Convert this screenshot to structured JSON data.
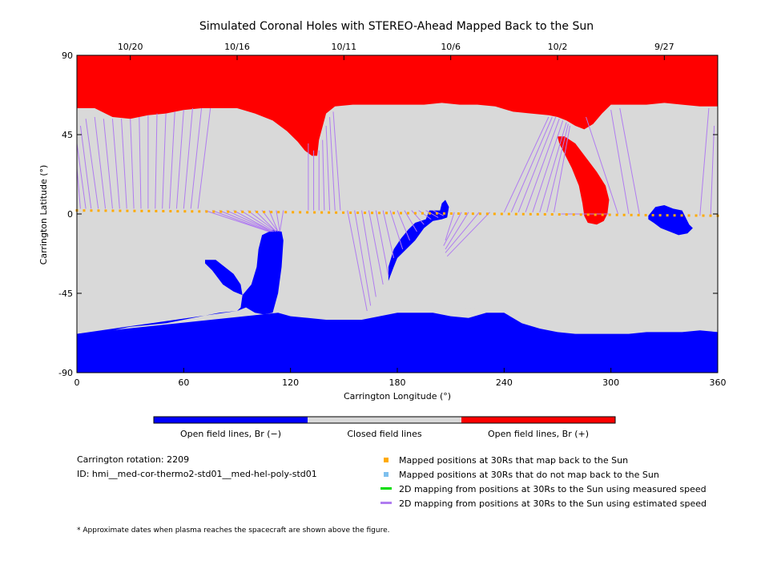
{
  "chart_data": {
    "type": "heatmap",
    "title": "Simulated Coronal Holes with STEREO-Ahead Mapped Back to the Sun",
    "xlabel": "Carrington Longitude (°)",
    "ylabel": "Carrington Latitude (°)",
    "xlim": [
      0,
      360
    ],
    "ylim": [
      -90,
      90
    ],
    "x_ticks": [
      "0",
      "60",
      "120",
      "180",
      "240",
      "300",
      "360"
    ],
    "y_ticks": [
      "90",
      "45",
      "0",
      "-45",
      "-90"
    ],
    "top_dates": [
      {
        "label": "10/20",
        "lon": 30
      },
      {
        "label": "10/16",
        "lon": 90
      },
      {
        "label": "10/11",
        "lon": 150
      },
      {
        "label": "10/6",
        "lon": 210
      },
      {
        "label": "10/2",
        "lon": 270
      },
      {
        "label": "9/27",
        "lon": 330
      }
    ],
    "colorbar": [
      {
        "label": "Open field lines, Br (−)",
        "color": "#0000ff"
      },
      {
        "label": "Closed field lines",
        "color": "#d9d9d9"
      },
      {
        "label": "Open field lines, Br (+)",
        "color": "#ff0000"
      }
    ],
    "north_hole_boundary": [
      [
        0,
        60
      ],
      [
        10,
        60
      ],
      [
        20,
        55
      ],
      [
        30,
        54
      ],
      [
        40,
        56
      ],
      [
        50,
        57
      ],
      [
        60,
        59
      ],
      [
        70,
        60
      ],
      [
        80,
        60
      ],
      [
        90,
        60
      ],
      [
        100,
        57
      ],
      [
        110,
        53
      ],
      [
        118,
        47
      ],
      [
        124,
        41
      ],
      [
        128,
        36
      ],
      [
        132,
        33
      ],
      [
        135,
        33
      ],
      [
        136,
        42
      ],
      [
        140,
        57
      ],
      [
        145,
        61
      ],
      [
        155,
        62
      ],
      [
        165,
        62
      ],
      [
        175,
        62
      ],
      [
        185,
        62
      ],
      [
        195,
        62
      ],
      [
        205,
        63
      ],
      [
        215,
        62
      ],
      [
        225,
        62
      ],
      [
        235,
        61
      ],
      [
        245,
        58
      ],
      [
        255,
        57
      ],
      [
        265,
        56
      ],
      [
        270,
        55
      ],
      [
        275,
        53
      ],
      [
        280,
        50
      ],
      [
        285,
        48
      ],
      [
        290,
        51
      ],
      [
        295,
        57
      ],
      [
        300,
        62
      ],
      [
        310,
        62
      ],
      [
        320,
        62
      ],
      [
        330,
        63
      ],
      [
        340,
        62
      ],
      [
        350,
        61
      ],
      [
        360,
        61
      ]
    ],
    "south_hole_boundary": [
      [
        0,
        -68
      ],
      [
        10,
        -68
      ],
      [
        20,
        -66
      ],
      [
        30,
        -64
      ],
      [
        40,
        -63
      ],
      [
        50,
        -62
      ],
      [
        60,
        -60
      ],
      [
        70,
        -58
      ],
      [
        80,
        -56
      ],
      [
        90,
        -55
      ],
      [
        95,
        -53
      ],
      [
        100,
        -56
      ],
      [
        105,
        -57
      ],
      [
        110,
        -56
      ],
      [
        113,
        -45
      ],
      [
        115,
        -30
      ],
      [
        116,
        -15
      ],
      [
        115,
        -10
      ],
      [
        110,
        -9
      ],
      [
        104,
        -12
      ],
      [
        102,
        -20
      ],
      [
        101,
        -30
      ],
      [
        98,
        -40
      ],
      [
        93,
        -46
      ],
      [
        92,
        -53
      ],
      [
        90,
        -55
      ]
    ],
    "south_hole_main": [
      [
        113,
        -56
      ],
      [
        120,
        -58
      ],
      [
        130,
        -59
      ],
      [
        140,
        -60
      ],
      [
        150,
        -60
      ],
      [
        160,
        -60
      ],
      [
        170,
        -58
      ],
      [
        180,
        -56
      ],
      [
        190,
        -56
      ],
      [
        200,
        -56
      ],
      [
        210,
        -58
      ],
      [
        220,
        -59
      ],
      [
        230,
        -56
      ],
      [
        240,
        -56
      ],
      [
        250,
        -62
      ],
      [
        260,
        -65
      ],
      [
        270,
        -67
      ],
      [
        280,
        -68
      ],
      [
        290,
        -68
      ],
      [
        300,
        -68
      ],
      [
        310,
        -68
      ],
      [
        320,
        -67
      ],
      [
        330,
        -67
      ],
      [
        340,
        -67
      ],
      [
        350,
        -66
      ],
      [
        360,
        -67
      ],
      [
        360,
        -90
      ],
      [
        0,
        -90
      ],
      [
        0,
        -68
      ]
    ],
    "south_extension": [
      [
        175,
        -38
      ],
      [
        178,
        -30
      ],
      [
        180,
        -25
      ],
      [
        185,
        -20
      ],
      [
        190,
        -15
      ],
      [
        195,
        -8
      ],
      [
        200,
        -4
      ],
      [
        205,
        -3
      ],
      [
        208,
        -2
      ],
      [
        209,
        4
      ],
      [
        207,
        8
      ],
      [
        205,
        6
      ],
      [
        204,
        2
      ],
      [
        198,
        2
      ],
      [
        196,
        -3
      ],
      [
        190,
        -5
      ],
      [
        186,
        -9
      ],
      [
        182,
        -14
      ],
      [
        178,
        -20
      ],
      [
        175,
        -30
      ]
    ],
    "south_island_1": [
      [
        72,
        -26
      ],
      [
        78,
        -26
      ],
      [
        83,
        -30
      ],
      [
        88,
        -34
      ],
      [
        92,
        -40
      ],
      [
        93,
        -46
      ],
      [
        88,
        -44
      ],
      [
        82,
        -40
      ],
      [
        76,
        -32
      ],
      [
        72,
        -28
      ]
    ],
    "south_island_2": [
      [
        321,
        -1
      ],
      [
        325,
        4
      ],
      [
        330,
        5
      ],
      [
        335,
        3
      ],
      [
        340,
        2
      ],
      [
        344,
        -6
      ],
      [
        346,
        -8
      ],
      [
        343,
        -11
      ],
      [
        338,
        -12
      ],
      [
        333,
        -10
      ],
      [
        328,
        -8
      ],
      [
        324,
        -5
      ],
      [
        321,
        -3
      ]
    ],
    "closed_hole_1": [
      [
        172,
        -50
      ],
      [
        176,
        -52
      ],
      [
        182,
        -52
      ],
      [
        186,
        -49
      ],
      [
        185,
        -42
      ],
      [
        180,
        -39
      ],
      [
        174,
        -40
      ],
      [
        171,
        -45
      ]
    ],
    "closed_hole_2": [
      [
        192,
        -44
      ],
      [
        200,
        -38
      ],
      [
        210,
        -37
      ],
      [
        220,
        -38
      ],
      [
        228,
        -42
      ],
      [
        230,
        -48
      ],
      [
        225,
        -53
      ],
      [
        212,
        -55
      ],
      [
        198,
        -53
      ],
      [
        192,
        -49
      ]
    ],
    "north_island": [
      [
        270,
        44
      ],
      [
        274,
        44
      ],
      [
        280,
        40
      ],
      [
        286,
        32
      ],
      [
        292,
        24
      ],
      [
        297,
        16
      ],
      [
        299,
        8
      ],
      [
        298,
        0
      ],
      [
        296,
        -4
      ],
      [
        292,
        -6
      ],
      [
        287,
        -5
      ],
      [
        285,
        -1
      ],
      [
        284,
        6
      ],
      [
        282,
        16
      ],
      [
        278,
        26
      ],
      [
        274,
        34
      ],
      [
        271,
        40
      ]
    ],
    "mapped_track": {
      "lon_start": 0,
      "lat_start": 2,
      "lon_end": 360,
      "lat_end": -1,
      "count": 90
    },
    "field_line_links": [
      [
        [
          2,
          3
        ],
        [
          0,
          26
        ]
      ],
      [
        [
          5,
          3
        ],
        [
          0,
          40
        ]
      ],
      [
        [
          8,
          3
        ],
        [
          2,
          50
        ]
      ],
      [
        [
          12,
          3
        ],
        [
          5,
          54
        ]
      ],
      [
        [
          16,
          3
        ],
        [
          10,
          55
        ]
      ],
      [
        [
          20,
          3
        ],
        [
          15,
          54
        ]
      ],
      [
        [
          24,
          3
        ],
        [
          20,
          54
        ]
      ],
      [
        [
          28,
          3
        ],
        [
          25,
          54
        ]
      ],
      [
        [
          32,
          3
        ],
        [
          30,
          54
        ]
      ],
      [
        [
          36,
          3
        ],
        [
          35,
          55
        ]
      ],
      [
        [
          40,
          3
        ],
        [
          40,
          56
        ]
      ],
      [
        [
          44,
          3
        ],
        [
          45,
          57
        ]
      ],
      [
        [
          48,
          3
        ],
        [
          50,
          57
        ]
      ],
      [
        [
          52,
          3
        ],
        [
          55,
          58
        ]
      ],
      [
        [
          56,
          3
        ],
        [
          60,
          59
        ]
      ],
      [
        [
          60,
          3
        ],
        [
          65,
          60
        ]
      ],
      [
        [
          64,
          3
        ],
        [
          70,
          60
        ]
      ],
      [
        [
          68,
          3
        ],
        [
          75,
          60
        ]
      ],
      [
        [
          72,
          2
        ],
        [
          108,
          -10
        ]
      ],
      [
        [
          76,
          2
        ],
        [
          108,
          -10
        ]
      ],
      [
        [
          80,
          2
        ],
        [
          109,
          -10
        ]
      ],
      [
        [
          84,
          2
        ],
        [
          110,
          -10
        ]
      ],
      [
        [
          88,
          2
        ],
        [
          110,
          -10
        ]
      ],
      [
        [
          92,
          2
        ],
        [
          111,
          -10
        ]
      ],
      [
        [
          96,
          2
        ],
        [
          112,
          -10
        ]
      ],
      [
        [
          100,
          2
        ],
        [
          112,
          -10
        ]
      ],
      [
        [
          104,
          2
        ],
        [
          113,
          -10
        ]
      ],
      [
        [
          108,
          2
        ],
        [
          113,
          -10
        ]
      ],
      [
        [
          112,
          2
        ],
        [
          114,
          -10
        ]
      ],
      [
        [
          116,
          2
        ],
        [
          114,
          -10
        ]
      ],
      [
        [
          130,
          2
        ],
        [
          130,
          40
        ]
      ],
      [
        [
          133,
          2
        ],
        [
          133,
          36
        ]
      ],
      [
        [
          136,
          2
        ],
        [
          136,
          36
        ]
      ],
      [
        [
          139,
          2
        ],
        [
          138,
          42
        ]
      ],
      [
        [
          142,
          2
        ],
        [
          140,
          50
        ]
      ],
      [
        [
          145,
          2
        ],
        [
          142,
          55
        ]
      ],
      [
        [
          148,
          2
        ],
        [
          144,
          58
        ]
      ],
      [
        [
          152,
          2
        ],
        [
          163,
          -55
        ]
      ],
      [
        [
          156,
          2
        ],
        [
          165,
          -52
        ]
      ],
      [
        [
          160,
          2
        ],
        [
          168,
          -47
        ]
      ],
      [
        [
          164,
          2
        ],
        [
          172,
          -40
        ]
      ],
      [
        [
          168,
          2
        ],
        [
          175,
          -35
        ]
      ],
      [
        [
          172,
          2
        ],
        [
          178,
          -25
        ]
      ],
      [
        [
          176,
          2
        ],
        [
          183,
          -20
        ]
      ],
      [
        [
          180,
          2
        ],
        [
          187,
          -15
        ]
      ],
      [
        [
          184,
          2
        ],
        [
          191,
          -10
        ]
      ],
      [
        [
          188,
          2
        ],
        [
          195,
          -6
        ]
      ],
      [
        [
          192,
          2
        ],
        [
          199,
          -3
        ]
      ],
      [
        [
          196,
          2
        ],
        [
          203,
          -2
        ]
      ],
      [
        [
          200,
          2
        ],
        [
          206,
          -1
        ]
      ],
      [
        [
          212,
          1
        ],
        [
          207,
          -15
        ]
      ],
      [
        [
          216,
          1
        ],
        [
          206,
          -18
        ]
      ],
      [
        [
          220,
          1
        ],
        [
          207,
          -20
        ]
      ],
      [
        [
          226,
          1
        ],
        [
          207,
          -22
        ]
      ],
      [
        [
          232,
          1
        ],
        [
          208,
          -24
        ]
      ],
      [
        [
          240,
          1
        ],
        [
          265,
          55
        ]
      ],
      [
        [
          244,
          1
        ],
        [
          267,
          55
        ]
      ],
      [
        [
          248,
          1
        ],
        [
          269,
          55
        ]
      ],
      [
        [
          252,
          1
        ],
        [
          271,
          54
        ]
      ],
      [
        [
          256,
          1
        ],
        [
          273,
          53
        ]
      ],
      [
        [
          260,
          1
        ],
        [
          275,
          52
        ]
      ],
      [
        [
          264,
          1
        ],
        [
          276,
          51
        ]
      ],
      [
        [
          268,
          1
        ],
        [
          277,
          50
        ]
      ],
      [
        [
          272,
          0
        ],
        [
          293,
          0
        ]
      ],
      [
        [
          276,
          0
        ],
        [
          293,
          0
        ]
      ],
      [
        [
          280,
          0
        ],
        [
          293,
          0
        ]
      ],
      [
        [
          284,
          0
        ],
        [
          293,
          0
        ]
      ],
      [
        [
          288,
          0
        ],
        [
          293,
          0
        ]
      ],
      [
        [
          292,
          0
        ],
        [
          293,
          0
        ]
      ],
      [
        [
          296,
          0
        ],
        [
          293,
          0
        ]
      ],
      [
        [
          300,
          0
        ],
        [
          293,
          0
        ]
      ],
      [
        [
          304,
          0
        ],
        [
          286,
          55
        ]
      ],
      [
        [
          310,
          0
        ],
        [
          300,
          59
        ]
      ],
      [
        [
          316,
          0
        ],
        [
          305,
          60
        ]
      ],
      [
        [
          350,
          -1
        ],
        [
          355,
          60
        ]
      ],
      [
        [
          356,
          -1
        ],
        [
          358,
          50
        ]
      ],
      [
        [
          360,
          -1
        ],
        [
          360,
          25
        ]
      ]
    ]
  },
  "legend_items": [
    {
      "label": "Mapped positions at 30Rs that map back to the Sun",
      "color": "#ffaa00",
      "kind": "square"
    },
    {
      "label": "Mapped positions at 30Rs that do not map back to the Sun",
      "color": "#7ec0ee",
      "kind": "square"
    },
    {
      "label": "2D mapping from positions at 30Rs to the Sun using measured speed",
      "color": "#00dd00",
      "kind": "line"
    },
    {
      "label": "2D mapping from positions at 30Rs to the Sun using estimated speed",
      "color": "#b07cf0",
      "kind": "line"
    }
  ],
  "info": {
    "rotation": "Carrington rotation: 2209",
    "id": "ID: hmi__med-cor-thermo2-std01__med-hel-poly-std01",
    "footnote": "* Approximate dates when plasma reaches the spacecraft are shown above the figure."
  }
}
